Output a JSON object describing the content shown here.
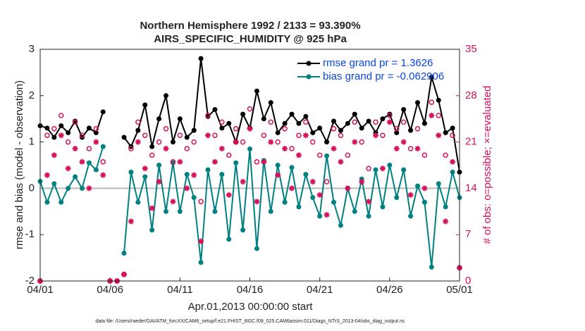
{
  "chart_data": {
    "type": "line",
    "title": "Northern Hemisphere 1992 / 2133 = 93.390%",
    "subtitle": "AIRS_SPECIFIC_HUMIDITY @ 925 hPa",
    "ylabel": "rmse and bias (model - observation)",
    "y2label": "# of obs: o=possible; ×=evaluated",
    "xlabel": "Apr.01,2013 00:00:00 start",
    "footnote": "data file: /Users/raeder/DAI/ATM_forcXX/CAM6_setup/f.e21.FHIST_BGC.f09_025.CAM6assim.011/Diags_NTrS_2013-04/obs_diag_output.nc",
    "xlim": [
      0,
      30
    ],
    "xticks": [
      {
        "value": 0,
        "label": "04/01"
      },
      {
        "value": 5,
        "label": "04/06"
      },
      {
        "value": 10,
        "label": "04/11"
      },
      {
        "value": 15,
        "label": "04/16"
      },
      {
        "value": 20,
        "label": "04/21"
      },
      {
        "value": 25,
        "label": "04/26"
      },
      {
        "value": 30,
        "label": "05/01"
      }
    ],
    "ylim": [
      -2,
      3
    ],
    "yticks": [
      -2,
      -1,
      0,
      1,
      2,
      3
    ],
    "y2lim": [
      0,
      35
    ],
    "y2ticks": [
      0,
      7,
      14,
      21,
      28,
      35
    ],
    "x": [
      0,
      0.5,
      1,
      1.5,
      2,
      2.5,
      3,
      3.5,
      4,
      4.5,
      5,
      5.5,
      6,
      6.5,
      7,
      7.5,
      8,
      8.5,
      9,
      9.5,
      10,
      10.5,
      11,
      11.5,
      12,
      12.5,
      13,
      13.5,
      14,
      14.5,
      15,
      15.5,
      16,
      16.5,
      17,
      17.5,
      18,
      18.5,
      19,
      19.5,
      20,
      20.5,
      21,
      21.5,
      22,
      22.5,
      23,
      23.5,
      24,
      24.5,
      25,
      25.5,
      26,
      26.5,
      27,
      27.5,
      28,
      28.5,
      29,
      29.5,
      30
    ],
    "series": [
      {
        "name": "rmse grand pr = 1.3626",
        "color": "#000000",
        "marker": "circle-filled",
        "values": [
          1.35,
          1.3,
          1.1,
          1.35,
          1.2,
          1.45,
          1.1,
          1.3,
          1.2,
          1.65,
          null,
          null,
          1.1,
          0.9,
          1.25,
          1.8,
          0.9,
          1.5,
          2.0,
          1.0,
          1.5,
          1.1,
          1.25,
          2.8,
          1.55,
          1.7,
          1.3,
          1.4,
          1.0,
          1.6,
          1.3,
          2.1,
          1.5,
          1.85,
          1.2,
          1.4,
          1.6,
          1.4,
          1.55,
          1.2,
          1.3,
          1.0,
          1.45,
          1.25,
          1.4,
          1.6,
          1.3,
          1.45,
          1.2,
          1.5,
          1.6,
          1.2,
          1.7,
          1.25,
          1.85,
          1.4,
          2.4,
          1.9,
          1.2,
          1.3,
          0.35
        ]
      },
      {
        "name": "bias grand pr = -0.062906",
        "color": "#008080",
        "marker": "circle-filled",
        "values": [
          0.15,
          -0.3,
          0.1,
          -0.3,
          0.0,
          0.25,
          0.0,
          0.55,
          0.4,
          0.9,
          null,
          null,
          -1.4,
          0.35,
          -0.3,
          0.25,
          -0.9,
          0.5,
          -0.5,
          0.55,
          -0.5,
          0.3,
          -0.2,
          -1.6,
          0.4,
          -0.5,
          0.3,
          -1.1,
          0.55,
          -0.9,
          0.85,
          -1.3,
          0.6,
          -0.5,
          0.5,
          -0.3,
          0.45,
          -0.4,
          0.3,
          -0.2,
          -0.6,
          0.7,
          -0.3,
          -0.8,
          0.0,
          -0.5,
          0.2,
          -0.6,
          0.4,
          -0.4,
          0.5,
          -0.2,
          0.4,
          -0.6,
          0.05,
          -0.3,
          -1.7,
          0.1,
          -0.4,
          0.35,
          -0.2
        ]
      },
      {
        "color": "#d6105a",
        "marker": "circle-open",
        "axis": "y2",
        "values": [
          0,
          22,
          23,
          25,
          21,
          24,
          22,
          20,
          23,
          18,
          0,
          0,
          1,
          20,
          24,
          22,
          19,
          21,
          23,
          18,
          22,
          20,
          21,
          12,
          25,
          22,
          24,
          19,
          23,
          21,
          26,
          18,
          22,
          24,
          21,
          23,
          20,
          22,
          24,
          21,
          19,
          15,
          23,
          22,
          19,
          24,
          21,
          17,
          24,
          22,
          25,
          23,
          24,
          20,
          23,
          19,
          27,
          25,
          19,
          22,
          2
        ]
      },
      {
        "color": "#d6105a",
        "marker": "asterisk",
        "axis": "y2",
        "values": [
          0,
          16,
          19,
          22,
          17,
          20,
          18,
          14,
          21,
          16,
          0,
          0,
          1,
          9,
          21,
          17,
          11,
          15,
          20,
          12,
          18,
          14,
          16,
          6,
          22,
          18,
          20,
          13,
          21,
          15,
          23,
          12,
          18,
          21,
          16,
          20,
          14,
          19,
          22,
          15,
          13,
          10,
          20,
          18,
          14,
          21,
          15,
          12,
          22,
          17,
          24,
          20,
          21,
          13,
          20,
          14,
          25,
          22,
          9,
          18,
          2
        ]
      }
    ],
    "zero_line": true,
    "legend": "upper right"
  }
}
